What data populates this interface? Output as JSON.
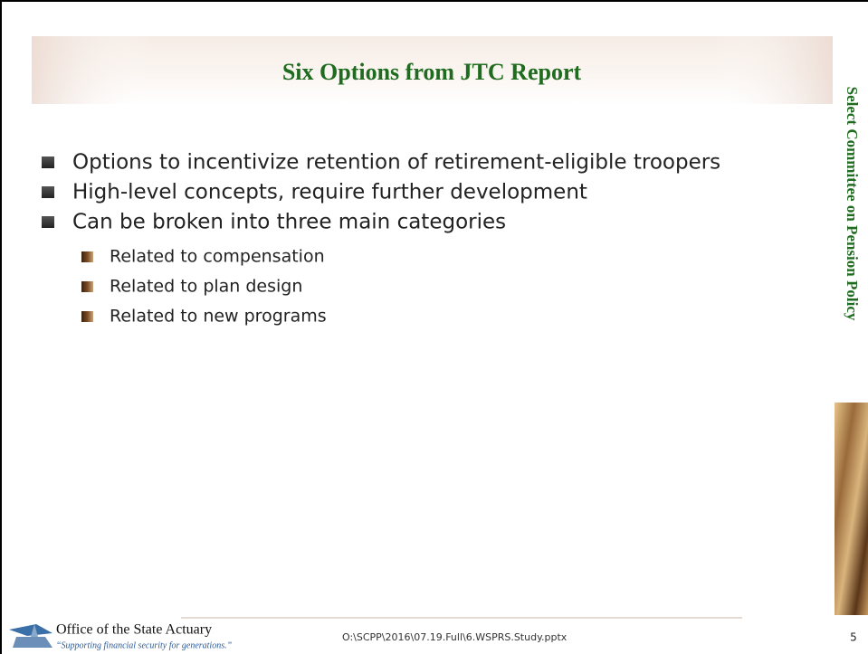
{
  "slide": {
    "title": "Six Options from JTC Report",
    "bullets": [
      {
        "text": "Options to incentivize retention of retirement-eligible troopers"
      },
      {
        "text": "High-level concepts, require further development"
      },
      {
        "text": "Can be broken into three main categories",
        "sub": [
          "Related to compensation",
          "Related to plan design",
          "Related to new programs"
        ]
      }
    ],
    "side_title": "Select Committee on Pension Policy",
    "footer": {
      "organization": "Office of the State Actuary",
      "tagline": "“Supporting financial security for generations.”",
      "file_path": "O:\\SCPP\\2016\\07.19.Full\\6.WSPRS.Study.pptx",
      "page_number": "5"
    }
  }
}
